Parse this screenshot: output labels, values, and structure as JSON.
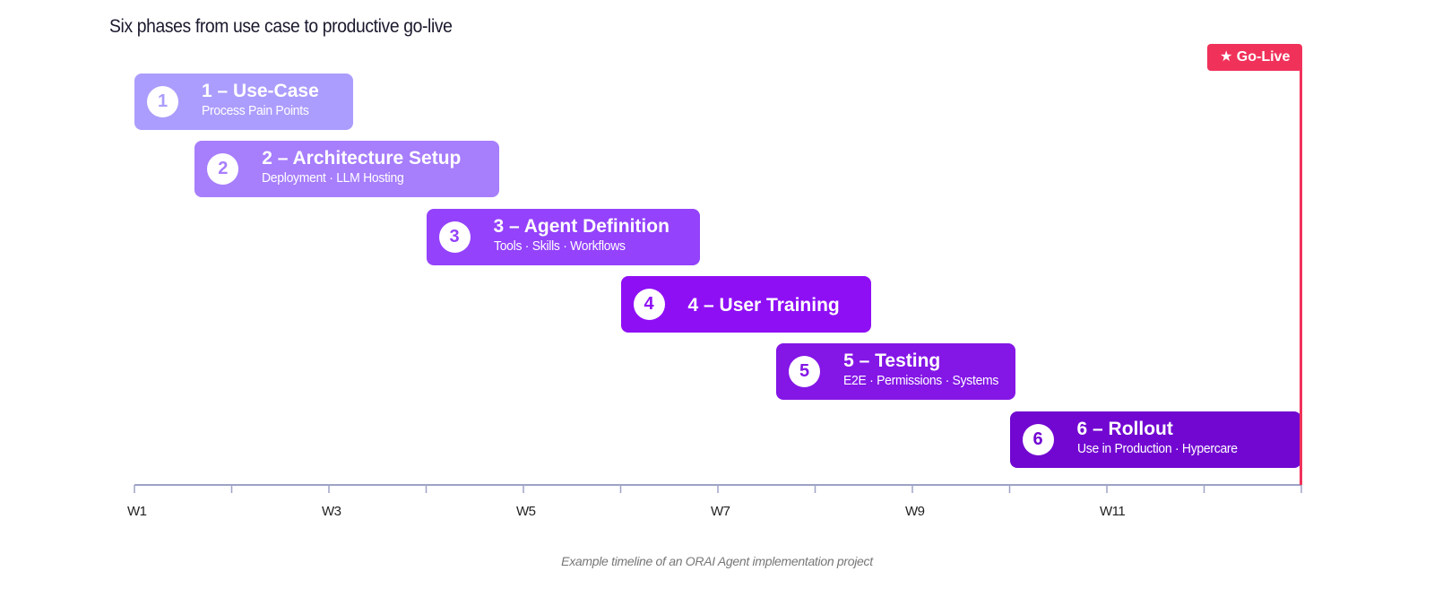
{
  "title": "Six phases from use case to productive go-live",
  "caption": "Example timeline of an ORAI Agent implementation project",
  "chart_data": {
    "type": "gantt",
    "title": "Six phases from use case to productive go-live",
    "x_ticks": [
      "W1",
      "",
      "W3",
      "",
      "W5",
      "",
      "W7",
      "",
      "W9",
      "",
      "W11",
      "",
      ""
    ],
    "xlim": [
      1,
      13
    ],
    "phases": [
      {
        "number": "1",
        "label": "1 – Use-Case",
        "subtitle": "Process Pain Points",
        "start": 1.0,
        "end": 3.25,
        "color": "#ab9dfd"
      },
      {
        "number": "2",
        "label": "2 – Architecture Setup",
        "subtitle": "Deployment · LLM Hosting",
        "start": 1.62,
        "end": 4.75,
        "color": "#a77efc"
      },
      {
        "number": "3",
        "label": "3 – Agent Definition",
        "subtitle": "Tools  · Skills  · Workflows",
        "start": 4.0,
        "end": 6.82,
        "color": "#9442fb"
      },
      {
        "number": "4",
        "label": "4 – User Training",
        "subtitle": "",
        "start": 6.0,
        "end": 8.58,
        "color": "#8f0ff5"
      },
      {
        "number": "5",
        "label": "5 – Testing",
        "subtitle": "E2E · Permissions · Systems",
        "start": 7.6,
        "end": 10.06,
        "color": "#8416e6"
      },
      {
        "number": "6",
        "label": "6 – Rollout",
        "subtitle": "Use in Production · Hypercare",
        "start": 10.0,
        "end": 13.0,
        "color": "#7207d1"
      }
    ],
    "milestone": {
      "label": "★ Go-Live",
      "x": 13.0,
      "color": "#f0325a"
    },
    "axis_color": "#9ea3c6",
    "badge_text_colors": [
      "#ab9dfd",
      "#a77efc",
      "#9442fb",
      "#8f0ff5",
      "#8416e6",
      "#7207d1"
    ]
  }
}
